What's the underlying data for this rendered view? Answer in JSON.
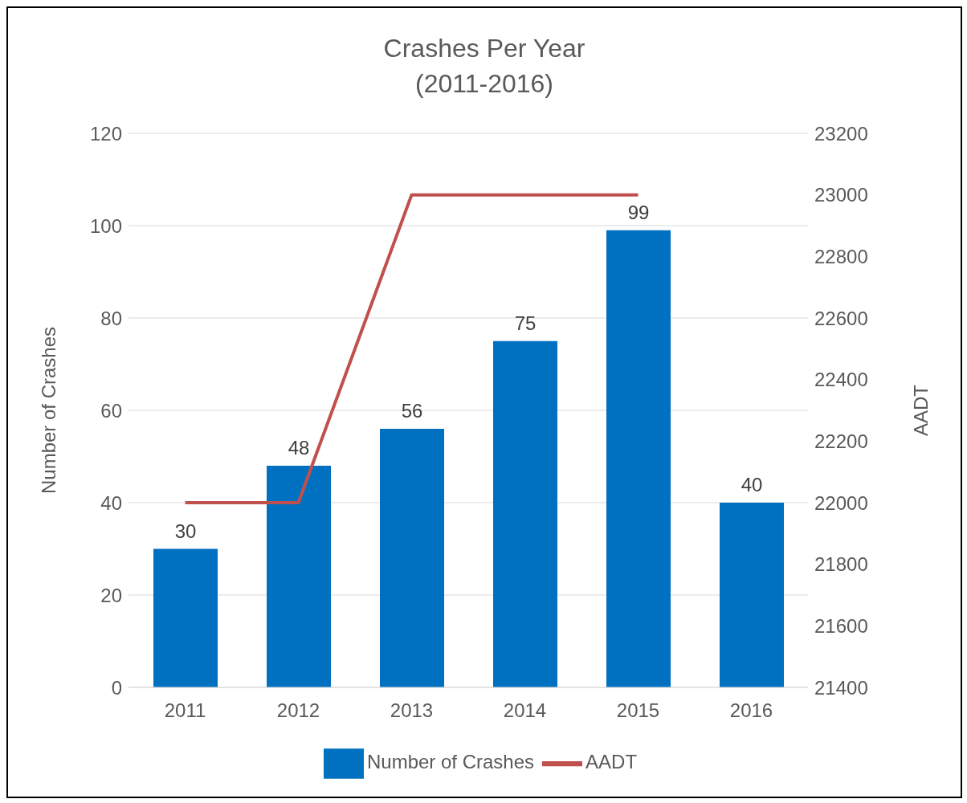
{
  "chart_data": {
    "type": "bar",
    "title": "Crashes Per Year",
    "subtitle": "(2011-2016)",
    "ylabel": "Number of Crashes",
    "y2label": "AADT",
    "categories": [
      "2011",
      "2012",
      "2013",
      "2014",
      "2015",
      "2016"
    ],
    "series": [
      {
        "name": "Number of Crashes",
        "color": "#0070c0",
        "values": [
          30,
          48,
          56,
          75,
          99,
          40
        ],
        "value_labels": [
          "30",
          "48",
          "56",
          "75",
          "99",
          "40"
        ]
      },
      {
        "name": "AADT",
        "type": "line",
        "axis": "y2",
        "color": "#c0504d",
        "values": [
          22000,
          22000,
          23000,
          23000,
          23000,
          null
        ]
      }
    ],
    "ylim": [
      0,
      120
    ],
    "yticks": [
      0,
      20,
      40,
      60,
      80,
      100,
      120
    ],
    "y2lim": [
      21400,
      23200
    ],
    "y2ticks": [
      21400,
      21600,
      21800,
      22000,
      22200,
      22400,
      22600,
      22800,
      23000,
      23200
    ],
    "grid": "y",
    "legend": "bottom",
    "marker": "none"
  }
}
